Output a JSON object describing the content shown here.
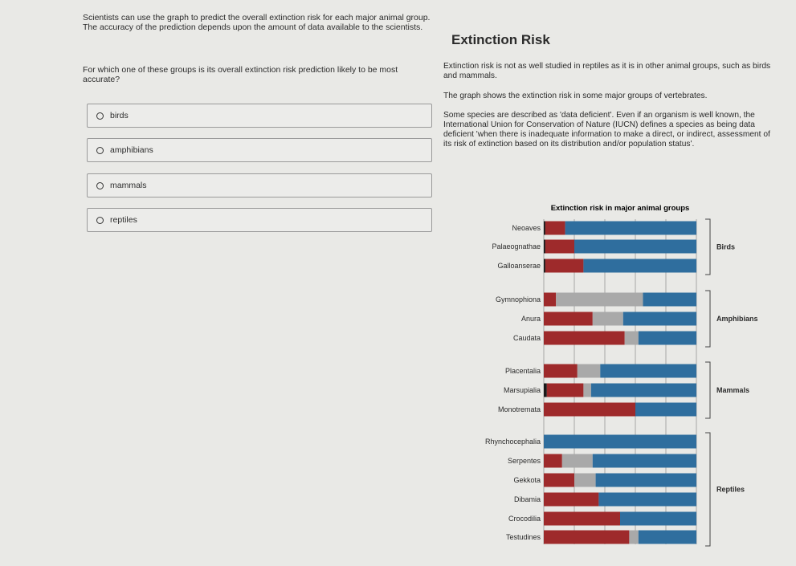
{
  "left": {
    "intro": "Scientists can use the graph to predict the overall extinction risk for each major animal group. The accuracy of the prediction depends upon the amount of data available to the scientists.",
    "question": "For which one of these groups is its overall extinction risk prediction likely to be most accurate?",
    "options": [
      "birds",
      "amphibians",
      "mammals",
      "reptiles"
    ]
  },
  "right": {
    "title": "Extinction Risk",
    "p1": "Extinction risk is not as well studied in reptiles as it is in other animal groups, such as birds and mammals.",
    "p2": "The graph shows the extinction risk in some major groups of vertebrates.",
    "p3": "Some species are described as 'data deficient'. Even if an organism is well known, the International Union for Conservation of Nature (IUCN) defines a species as being data deficient 'when there is inadequate information to make a direct, or indirect, assessment of its risk of extinction based on its distribution and/or population status'."
  },
  "colors": {
    "threatened": "#9e2a2b",
    "data_deficient": "#a9a9a9",
    "not_threatened": "#2f6e9e",
    "extinct": "#1a1a1a"
  },
  "chart_data": {
    "type": "bar",
    "stacked": true,
    "orientation": "horizontal",
    "title": "Extinction risk in major animal groups",
    "categories": [
      "Neoaves",
      "Palaeognathae",
      "Galloanserae",
      "Gymnophiona",
      "Anura",
      "Caudata",
      "Placentalia",
      "Marsupialia",
      "Monotremata",
      "Rhynchocephalia",
      "Serpentes",
      "Gekkota",
      "Dibamia",
      "Crocodilia",
      "Testudines"
    ],
    "groups": [
      {
        "label": "Birds",
        "members": [
          "Neoaves",
          "Palaeognathae",
          "Galloanserae"
        ]
      },
      {
        "label": "Amphibians",
        "members": [
          "Gymnophiona",
          "Anura",
          "Caudata"
        ]
      },
      {
        "label": "Mammals",
        "members": [
          "Placentalia",
          "Marsupialia",
          "Monotremata"
        ]
      },
      {
        "label": "Reptiles",
        "members": [
          "Rhynchocephalia",
          "Serpentes",
          "Gekkota",
          "Dibamia",
          "Crocodilia",
          "Testudines"
        ]
      }
    ],
    "series": [
      {
        "values": [
          1,
          1,
          1,
          0,
          0,
          0,
          0,
          2,
          0,
          0,
          0,
          0,
          0,
          0,
          0
        ]
      },
      {
        "values": [
          13,
          19,
          25,
          8,
          32,
          53,
          22,
          24,
          60,
          0,
          12,
          20,
          36,
          50,
          56
        ]
      },
      {
        "values": [
          0,
          0,
          0,
          57,
          20,
          9,
          15,
          5,
          0,
          0,
          20,
          14,
          0,
          0,
          6
        ]
      },
      {
        "values": [
          86,
          80,
          74,
          35,
          48,
          38,
          63,
          69,
          40,
          100,
          68,
          66,
          64,
          50,
          38
        ]
      }
    ],
    "xlim": [
      0,
      100
    ],
    "grid": true
  }
}
